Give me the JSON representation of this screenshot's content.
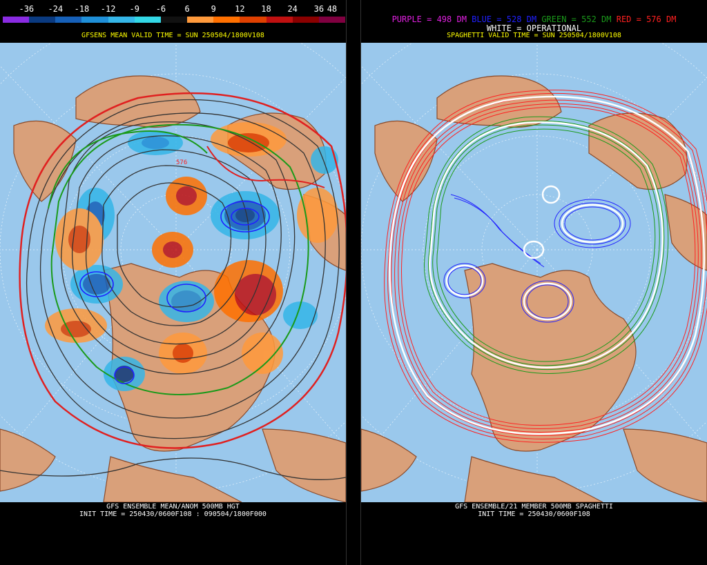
{
  "left": {
    "colorbar": {
      "labels": [
        "-36",
        "-24",
        "-18",
        "-12",
        "-9",
        "-6",
        "6",
        "9",
        "12",
        "18",
        "24",
        "36",
        "48"
      ],
      "colors": [
        "#8a2be2",
        "#0a3a80",
        "#1660b8",
        "#1f8fd8",
        "#35b6e8",
        "#33d7e6",
        "#111111",
        "#ff9a3c",
        "#ff7000",
        "#e04000",
        "#c01010",
        "#8b0000",
        "#800040"
      ]
    },
    "title": "GFSENS MEAN VALID TIME = SUN 250504/1800V108",
    "contour_label": "576",
    "bottom_line1": "GFS ENSEMBLE MEAN/ANOM 500MB HGT",
    "bottom_line2": "INIT TIME = 250430/0600F108 : 090504/1800F000"
  },
  "right": {
    "legend": {
      "purple": "PURPLE = 498 DM",
      "blue": "BLUE = 528 DM",
      "green": "GREEN = 552 DM",
      "red": "RED = 576 DM",
      "white": "WHITE = OPERATIONAL"
    },
    "title": "SPAGHETTI VALID TIME = SUN 250504/1800V108",
    "bottom_line1": "GFS ENSEMBLE/21 MEMBER 500MB SPAGHETTI",
    "bottom_line2": "INIT TIME = 250430/0600F108"
  },
  "colors": {
    "ocean": "#9ac8ec",
    "land": "#d9a07a",
    "coast": "#8a4a2a",
    "purple": "#e020e0",
    "blue": "#2020ff",
    "green": "#1a9a1a",
    "red": "#ff2020",
    "white": "#ffffff"
  }
}
